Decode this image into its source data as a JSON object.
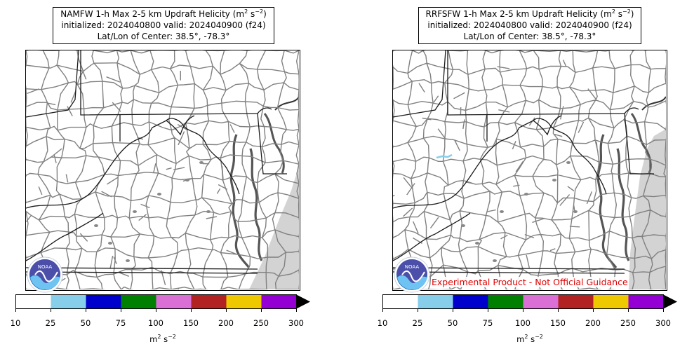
{
  "panels": [
    {
      "title_prefix": "NAMFW 1-h Max 2-5 km Updraft Helicity (m",
      "title_sup1": "2",
      "title_mid": " s",
      "title_sup2": "−2",
      "title_suffix": ")",
      "line2": "initialized: 2024040800 valid: 2024040900 (f24)",
      "line3": "Lat/Lon of Center: 38.5°, -78.3°",
      "disclaimer": ""
    },
    {
      "title_prefix": "RRFSFW 1-h Max 2-5 km Updraft Helicity (m",
      "title_sup1": "2",
      "title_mid": " s",
      "title_sup2": "−2",
      "title_suffix": ")",
      "line2": "initialized: 2024040800 valid: 2024040900 (f24)",
      "line3": "Lat/Lon of Center: 38.5°, -78.3°",
      "disclaimer": "Experimental Product - Not Official Guidance"
    }
  ],
  "colorbar": {
    "ticks": [
      "10",
      "25",
      "50",
      "75",
      "100",
      "150",
      "200",
      "250",
      "300"
    ],
    "colors": [
      "#ffffff",
      "#87ceeb",
      "#0000cd",
      "#008000",
      "#da70d6",
      "#b22222",
      "#eec900",
      "#9400d3"
    ],
    "extend_color": "#000000",
    "units_base": "m",
    "units_sup1": "2",
    "units_mid": " s",
    "units_sup2": "−2"
  },
  "map": {
    "missing_color": "#d3d3d3",
    "county_color": "#808080",
    "state_color": "#1a1a1a",
    "logo": "noaa-logo"
  }
}
